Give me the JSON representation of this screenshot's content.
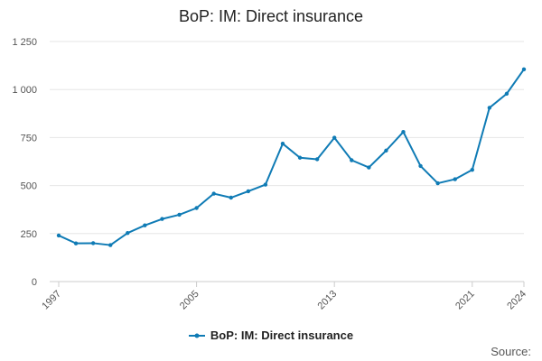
{
  "chart_data": {
    "type": "line",
    "title": "BoP: IM: Direct insurance",
    "xlabel": "",
    "ylabel": "",
    "x": [
      1997,
      1998,
      1999,
      2000,
      2001,
      2002,
      2003,
      2004,
      2005,
      2006,
      2007,
      2008,
      2009,
      2010,
      2011,
      2012,
      2013,
      2014,
      2015,
      2016,
      2017,
      2018,
      2019,
      2020,
      2021,
      2022,
      2023,
      2024
    ],
    "x_ticks": [
      "1997",
      "2005",
      "2013",
      "2021",
      "2024"
    ],
    "y_ticks": [
      "0",
      "250",
      "500",
      "750",
      "1 000",
      "1 250"
    ],
    "ylim": [
      0,
      1250
    ],
    "grid": true,
    "legend_position": "bottom",
    "series": [
      {
        "name": "BoP: IM: Direct insurance",
        "color": "#0f7bb5",
        "values": [
          240,
          199,
          200,
          190,
          253,
          293,
          326,
          348,
          383,
          458,
          437,
          470,
          505,
          718,
          645,
          637,
          749,
          632,
          594,
          682,
          779,
          602,
          512,
          533,
          582,
          905,
          978,
          1105
        ]
      }
    ],
    "source_label": "Source:"
  }
}
